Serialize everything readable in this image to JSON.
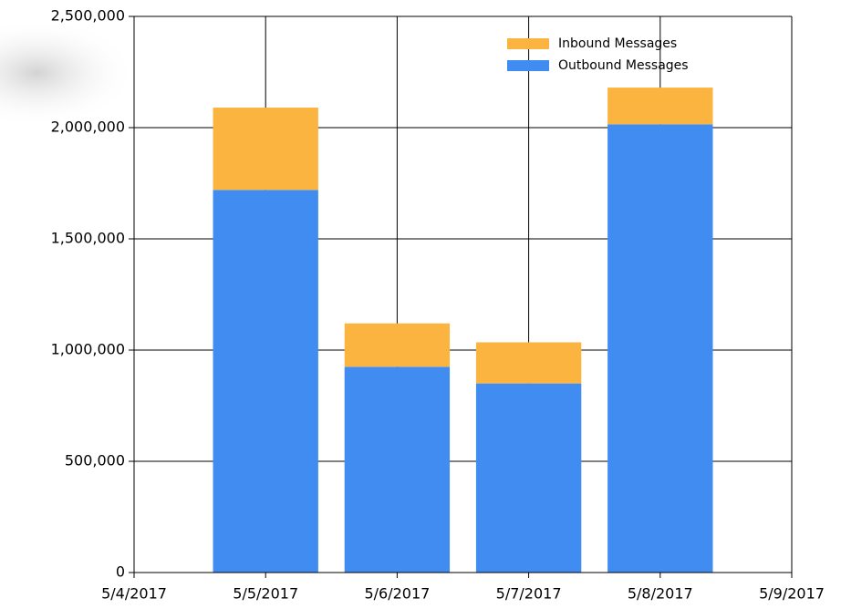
{
  "chart_data": {
    "type": "stacked_bar",
    "categories": [
      "5/4/2017",
      "5/5/2017",
      "5/6/2017",
      "5/7/2017",
      "5/8/2017",
      "5/9/2017"
    ],
    "series": [
      {
        "name": "Outbound Messages",
        "color": "#418cf0",
        "values": [
          null,
          1720000,
          925000,
          850000,
          2015000,
          null
        ]
      },
      {
        "name": "Inbound Messages",
        "color": "#fcb441",
        "values": [
          null,
          370000,
          195000,
          185000,
          165000,
          null
        ]
      }
    ],
    "ylim": [
      0,
      2500000
    ],
    "yticks": [
      0,
      {
        "value": 500000,
        "label": "500,000"
      },
      {
        "value": 1000000,
        "label": "1,000,000"
      },
      {
        "value": 1500000,
        "label": "1,500,000"
      },
      {
        "value": 2000000,
        "label": "2,000,000"
      },
      {
        "value": 2500000,
        "label": "2,500,000"
      }
    ],
    "grid": true,
    "legend": "top-right"
  }
}
